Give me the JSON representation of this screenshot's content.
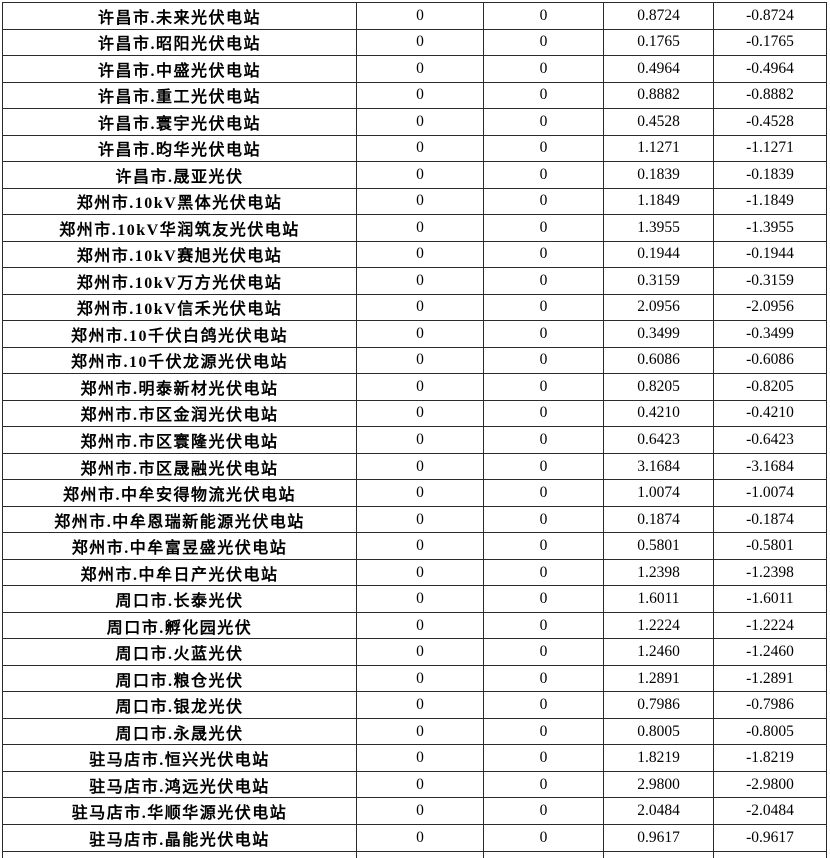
{
  "colors": {
    "border": "#2b2b2b",
    "text": "#000000",
    "background": "#ffffff"
  },
  "table": {
    "description": "Photovoltaic power station data table (no header row visible)",
    "rows": [
      [
        "许昌市.未来光伏电站",
        "0",
        "0",
        "0.8724",
        "-0.8724"
      ],
      [
        "许昌市.昭阳光伏电站",
        "0",
        "0",
        "0.1765",
        "-0.1765"
      ],
      [
        "许昌市.中盛光伏电站",
        "0",
        "0",
        "0.4964",
        "-0.4964"
      ],
      [
        "许昌市.重工光伏电站",
        "0",
        "0",
        "0.8882",
        "-0.8882"
      ],
      [
        "许昌市.寰宇光伏电站",
        "0",
        "0",
        "0.4528",
        "-0.4528"
      ],
      [
        "许昌市.昀华光伏电站",
        "0",
        "0",
        "1.1271",
        "-1.1271"
      ],
      [
        "许昌市.晟亚光伏",
        "0",
        "0",
        "0.1839",
        "-0.1839"
      ],
      [
        "郑州市.10kV黑体光伏电站",
        "0",
        "0",
        "1.1849",
        "-1.1849"
      ],
      [
        "郑州市.10kV华润筑友光伏电站",
        "0",
        "0",
        "1.3955",
        "-1.3955"
      ],
      [
        "郑州市.10kV赛旭光伏电站",
        "0",
        "0",
        "0.1944",
        "-0.1944"
      ],
      [
        "郑州市.10kV万方光伏电站",
        "0",
        "0",
        "0.3159",
        "-0.3159"
      ],
      [
        "郑州市.10kV信禾光伏电站",
        "0",
        "0",
        "2.0956",
        "-2.0956"
      ],
      [
        "郑州市.10千伏白鸽光伏电站",
        "0",
        "0",
        "0.3499",
        "-0.3499"
      ],
      [
        "郑州市.10千伏龙源光伏电站",
        "0",
        "0",
        "0.6086",
        "-0.6086"
      ],
      [
        "郑州市.明泰新材光伏电站",
        "0",
        "0",
        "0.8205",
        "-0.8205"
      ],
      [
        "郑州市.市区金润光伏电站",
        "0",
        "0",
        "0.4210",
        "-0.4210"
      ],
      [
        "郑州市.市区寰隆光伏电站",
        "0",
        "0",
        "0.6423",
        "-0.6423"
      ],
      [
        "郑州市.市区晟融光伏电站",
        "0",
        "0",
        "3.1684",
        "-3.1684"
      ],
      [
        "郑州市.中牟安得物流光伏电站",
        "0",
        "0",
        "1.0074",
        "-1.0074"
      ],
      [
        "郑州市.中牟恩瑞新能源光伏电站",
        "0",
        "0",
        "0.1874",
        "-0.1874"
      ],
      [
        "郑州市.中牟富昱盛光伏电站",
        "0",
        "0",
        "0.5801",
        "-0.5801"
      ],
      [
        "郑州市.中牟日产光伏电站",
        "0",
        "0",
        "1.2398",
        "-1.2398"
      ],
      [
        "周口市.长泰光伏",
        "0",
        "0",
        "1.6011",
        "-1.6011"
      ],
      [
        "周口市.孵化园光伏",
        "0",
        "0",
        "1.2224",
        "-1.2224"
      ],
      [
        "周口市.火蓝光伏",
        "0",
        "0",
        "1.2460",
        "-1.2460"
      ],
      [
        "周口市.粮仓光伏",
        "0",
        "0",
        "1.2891",
        "-1.2891"
      ],
      [
        "周口市.银龙光伏",
        "0",
        "0",
        "0.7986",
        "-0.7986"
      ],
      [
        "周口市.永晟光伏",
        "0",
        "0",
        "0.8005",
        "-0.8005"
      ],
      [
        "驻马店市.恒兴光伏电站",
        "0",
        "0",
        "1.8219",
        "-1.8219"
      ],
      [
        "驻马店市.鸿远光伏电站",
        "0",
        "0",
        "2.9800",
        "-2.9800"
      ],
      [
        "驻马店市.华顺华源光伏电站",
        "0",
        "0",
        "2.0484",
        "-2.0484"
      ],
      [
        "驻马店市.晶能光伏电站",
        "0",
        "0",
        "0.9617",
        "-0.9617"
      ]
    ]
  }
}
